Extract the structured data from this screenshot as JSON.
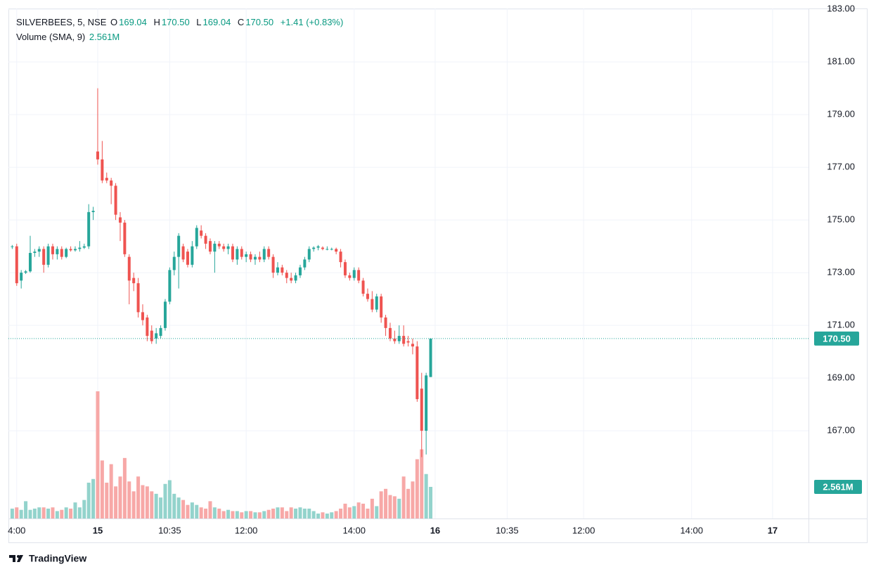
{
  "chart_data": {
    "type": "candlestick",
    "legend": {
      "symbol": "SILVERBEES, 5, NSE",
      "o_label": "O",
      "open": "169.04",
      "h_label": "H",
      "high": "170.50",
      "l_label": "L",
      "low": "169.04",
      "c_label": "C",
      "close": "170.50",
      "change": "+1.41 (+0.83%)",
      "volume_title": "Volume (SMA, 9)",
      "volume": "2.561M"
    },
    "branding": "TradingView",
    "up_color": "#26a69a",
    "down_color": "#ef5350",
    "volume_up_color": "#93d3cc",
    "volume_down_color": "#f7a8a7",
    "grid": true,
    "xlim": [
      -0.84,
      176.98
    ],
    "xticks": [
      {
        "value": 1,
        "label": "4:00"
      },
      {
        "value": 19,
        "label": "15"
      },
      {
        "value": 35,
        "label": "10:35"
      },
      {
        "value": 52,
        "label": "12:00"
      },
      {
        "value": 76,
        "label": "14:00"
      },
      {
        "value": 94,
        "label": "16"
      },
      {
        "value": 110,
        "label": "10:35"
      },
      {
        "value": 127,
        "label": "12:00"
      },
      {
        "value": 151,
        "label": "14:00"
      },
      {
        "value": 169,
        "label": "17"
      }
    ],
    "ylim": [
      163.67,
      183.03
    ],
    "yticks": [
      {
        "value": 183,
        "label": "183.00"
      },
      {
        "value": 181,
        "label": "181.00"
      },
      {
        "value": 179,
        "label": "179.00"
      },
      {
        "value": 177,
        "label": "177.00"
      },
      {
        "value": 175,
        "label": "175.00"
      },
      {
        "value": 173,
        "label": "173.00"
      },
      {
        "value": 171,
        "label": "171.00"
      },
      {
        "value": 169,
        "label": "169.00"
      },
      {
        "value": 167,
        "label": "167.00"
      }
    ],
    "volume_lim": [
      0,
      41.3
    ],
    "open": [
      174.0,
      174.0,
      172.7,
      173.0,
      173.05,
      173.75,
      173.8,
      173.9,
      173.3,
      174.0,
      173.7,
      173.9,
      173.6,
      173.9,
      173.85,
      173.9,
      173.95,
      174.0,
      175.3,
      177.6,
      177.3,
      176.6,
      176.5,
      176.3,
      175.1,
      174.9,
      173.6,
      172.8,
      172.6,
      171.5,
      171.3,
      170.8,
      170.5,
      170.6,
      170.9,
      171.9,
      173.1,
      173.6,
      174.0,
      173.8,
      173.3,
      174.0,
      174.6,
      174.4,
      174.2,
      173.8,
      174.1,
      174.0,
      173.9,
      174.0,
      173.5,
      173.9,
      173.6,
      173.7,
      173.5,
      173.6,
      173.5,
      173.9,
      173.6,
      173.0,
      173.2,
      173.0,
      172.8,
      172.7,
      172.9,
      173.2,
      173.5,
      173.9,
      173.95,
      173.95,
      173.9,
      173.9,
      173.9,
      173.8,
      173.4,
      172.9,
      172.8,
      173.1,
      172.7,
      172.2,
      172.0,
      171.6,
      172.1,
      171.3,
      170.9,
      170.5,
      170.4,
      170.6,
      170.4,
      170.3,
      170.2,
      168.6,
      167.0,
      169.04
    ],
    "high": [
      174.05,
      174.1,
      173.1,
      173.1,
      174.4,
      173.9,
      174.0,
      174.0,
      174.1,
      174.1,
      174.0,
      174.0,
      173.95,
      174.0,
      174.0,
      174.2,
      174.1,
      175.6,
      175.5,
      180.0,
      178.0,
      176.8,
      176.6,
      176.4,
      175.3,
      175.0,
      173.7,
      173.0,
      172.8,
      171.8,
      171.4,
      171.0,
      170.9,
      171.0,
      172.0,
      173.2,
      173.8,
      174.5,
      174.1,
      173.9,
      174.2,
      174.8,
      174.8,
      174.5,
      174.3,
      174.2,
      174.2,
      174.1,
      174.1,
      174.1,
      174.0,
      174.0,
      173.8,
      173.8,
      173.7,
      173.8,
      174.0,
      174.0,
      173.7,
      173.4,
      173.3,
      173.1,
      173.0,
      173.0,
      173.3,
      173.6,
      174.0,
      174.0,
      174.05,
      174.0,
      174.0,
      173.95,
      173.95,
      173.9,
      173.5,
      173.0,
      173.2,
      173.2,
      172.8,
      172.4,
      172.3,
      172.2,
      172.2,
      171.4,
      171.1,
      170.8,
      171.0,
      171.0,
      170.6,
      170.5,
      170.4,
      169.2,
      169.2,
      170.5
    ],
    "low": [
      173.9,
      172.5,
      172.4,
      172.95,
      173.0,
      173.6,
      173.6,
      173.0,
      173.2,
      173.5,
      173.5,
      173.5,
      173.55,
      173.8,
      173.8,
      173.8,
      173.9,
      173.9,
      175.0,
      177.1,
      176.4,
      176.4,
      175.6,
      175.0,
      174.2,
      173.6,
      171.8,
      172.3,
      171.3,
      171.0,
      170.4,
      170.3,
      170.3,
      170.5,
      170.8,
      171.8,
      172.9,
      172.4,
      173.4,
      173.2,
      173.2,
      173.9,
      174.3,
      173.9,
      173.7,
      173.0,
      173.9,
      173.8,
      173.7,
      173.4,
      173.3,
      173.5,
      173.4,
      173.4,
      173.3,
      173.4,
      173.4,
      173.5,
      172.8,
      172.9,
      172.9,
      172.6,
      172.6,
      172.6,
      172.8,
      173.1,
      173.4,
      173.8,
      173.85,
      173.85,
      173.85,
      173.85,
      173.7,
      173.2,
      172.8,
      172.7,
      172.7,
      172.6,
      172.1,
      171.9,
      171.5,
      171.5,
      171.1,
      170.6,
      170.4,
      170.3,
      170.3,
      170.2,
      170.2,
      169.9,
      168.1,
      166.0,
      166.1,
      169.04
    ],
    "close": [
      174.0,
      172.6,
      173.0,
      173.05,
      173.75,
      173.8,
      173.9,
      173.3,
      174.0,
      173.7,
      173.9,
      173.6,
      173.9,
      173.85,
      173.9,
      173.95,
      174.0,
      175.3,
      175.35,
      177.3,
      176.5,
      176.5,
      176.3,
      175.2,
      174.9,
      173.7,
      172.7,
      172.6,
      171.5,
      171.2,
      170.6,
      170.4,
      170.7,
      170.9,
      171.9,
      173.1,
      173.6,
      174.4,
      173.5,
      173.3,
      174.0,
      174.7,
      174.4,
      174.1,
      173.8,
      174.1,
      174.0,
      173.9,
      174.0,
      173.5,
      173.9,
      173.6,
      173.7,
      173.5,
      173.6,
      173.5,
      173.9,
      173.6,
      173.0,
      173.2,
      173.0,
      172.8,
      172.7,
      172.9,
      173.2,
      173.5,
      173.9,
      173.95,
      174.0,
      173.9,
      173.9,
      173.9,
      173.8,
      173.4,
      172.9,
      172.8,
      173.1,
      172.7,
      172.2,
      172.0,
      171.6,
      172.1,
      171.3,
      170.9,
      170.5,
      170.4,
      170.6,
      170.3,
      170.35,
      170.2,
      168.2,
      167.0,
      169.1,
      170.5
    ],
    "volume": [
      0.8,
      0.9,
      0.7,
      1.4,
      0.7,
      0.8,
      0.9,
      0.9,
      0.8,
      0.9,
      0.6,
      0.7,
      0.9,
      0.8,
      1.3,
      0.9,
      1.5,
      2.9,
      3.2,
      10.3,
      4.7,
      2.9,
      4.4,
      2.6,
      3.4,
      4.9,
      3.0,
      2.2,
      3.4,
      2.7,
      2.6,
      2.2,
      2.0,
      1.7,
      2.8,
      3.1,
      2.0,
      1.7,
      1.5,
      1.1,
      1.3,
      1.1,
      0.9,
      0.8,
      1.4,
      0.9,
      0.8,
      0.6,
      0.7,
      0.6,
      0.6,
      0.5,
      0.6,
      0.6,
      0.5,
      0.5,
      0.6,
      0.7,
      0.8,
      0.9,
      0.9,
      0.6,
      0.9,
      0.8,
      0.9,
      0.8,
      0.8,
      0.6,
      0.4,
      0.5,
      0.4,
      0.5,
      0.6,
      0.8,
      1.2,
      0.9,
      1.0,
      1.3,
      1.2,
      0.8,
      1.6,
      1.0,
      2.2,
      2.4,
      1.9,
      1.8,
      1.6,
      3.4,
      2.4,
      3.0,
      4.8,
      5.6,
      3.6,
      2.561
    ]
  }
}
